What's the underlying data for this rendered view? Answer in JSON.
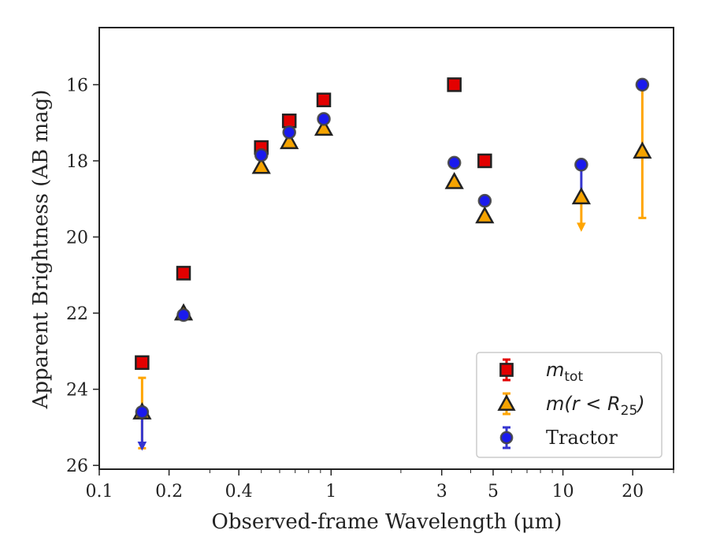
{
  "chart_data": {
    "type": "scatter",
    "title": "",
    "xlabel": "Observed-frame Wavelength (μm)",
    "ylabel": "Apparent Brightness (AB mag)",
    "xscale": "log",
    "xlim": [
      0.1,
      30
    ],
    "ylim": [
      26.1,
      14.5
    ],
    "y_inverted": true,
    "x_ticks": [
      0.1,
      0.2,
      0.4,
      1,
      3,
      5,
      10,
      20
    ],
    "x_tick_labels": [
      "0.1",
      "0.2",
      "0.4",
      "1",
      "3",
      "5",
      "10",
      "20"
    ],
    "y_ticks": [
      16,
      18,
      20,
      22,
      24,
      26
    ],
    "y_tick_labels": [
      "16",
      "18",
      "20",
      "22",
      "24",
      "26"
    ],
    "grid": false,
    "legend_position": "lower-right",
    "series": [
      {
        "name": "m_tot",
        "legend_label": {
          "main": "m",
          "sub": "tot",
          "rest": ""
        },
        "marker": "square",
        "color": "#e30000",
        "edge_color": "#222222",
        "points": [
          {
            "x": 0.153,
            "y": 23.3
          },
          {
            "x": 0.231,
            "y": 20.95
          },
          {
            "x": 0.5,
            "y": 17.65
          },
          {
            "x": 0.66,
            "y": 16.95
          },
          {
            "x": 0.93,
            "y": 16.4
          },
          {
            "x": 3.4,
            "y": 16.0
          },
          {
            "x": 4.6,
            "y": 18.0
          }
        ]
      },
      {
        "name": "m(r<R_25)",
        "legend_label": {
          "main": "m(r < R",
          "sub": "25",
          "rest": ")"
        },
        "marker": "triangle",
        "color": "#f5a300",
        "edge_color": "#222222",
        "errorbar_color": "#ffa500",
        "points": [
          {
            "x": 0.153,
            "y": 24.6,
            "err_low": 23.7,
            "err_high": 25.55
          },
          {
            "x": 0.231,
            "y": 22.0
          },
          {
            "x": 0.5,
            "y": 18.15
          },
          {
            "x": 0.66,
            "y": 17.5
          },
          {
            "x": 0.93,
            "y": 17.15
          },
          {
            "x": 3.4,
            "y": 18.55
          },
          {
            "x": 4.6,
            "y": 19.45
          },
          {
            "x": 12.0,
            "y": 18.95,
            "upper_limit_to": 19.8
          },
          {
            "x": 22.0,
            "y": 17.75,
            "err_low": 16.1,
            "err_high": 19.5
          }
        ]
      },
      {
        "name": "Tractor",
        "legend_label": {
          "main": "Tractor",
          "sub": "",
          "rest": ""
        },
        "marker": "circle",
        "color": "#1a1aee",
        "edge_color": "#444444",
        "errorbar_color": "#3535d0",
        "points": [
          {
            "x": 0.153,
            "y": 24.6,
            "upper_limit_to": 25.55
          },
          {
            "x": 0.231,
            "y": 22.05
          },
          {
            "x": 0.5,
            "y": 17.85
          },
          {
            "x": 0.66,
            "y": 17.25
          },
          {
            "x": 0.93,
            "y": 16.9
          },
          {
            "x": 3.4,
            "y": 18.05
          },
          {
            "x": 4.6,
            "y": 19.05
          },
          {
            "x": 12.0,
            "y": 18.1,
            "err_low": 18.1,
            "err_high": 18.9
          },
          {
            "x": 22.0,
            "y": 16.0
          }
        ]
      }
    ]
  }
}
